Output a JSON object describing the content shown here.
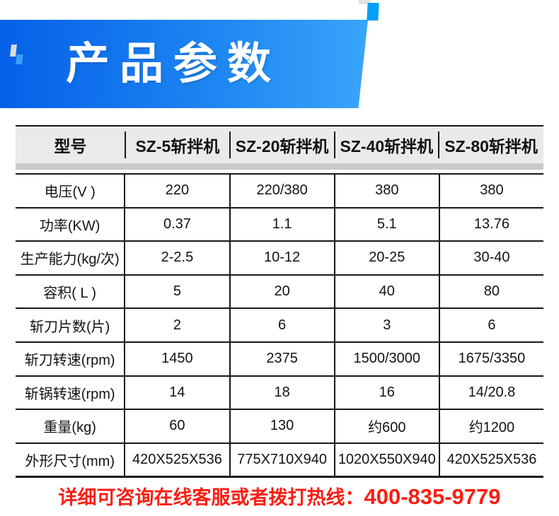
{
  "banner": {
    "title": "产品参数"
  },
  "table": {
    "columns": [
      "型号",
      "SZ-5斩拌机",
      "SZ-20斩拌机",
      "SZ-40斩拌机",
      "SZ-80斩拌机"
    ],
    "rows": [
      {
        "label": "电压(V )",
        "values": [
          "220",
          "220/380",
          "380",
          "380"
        ]
      },
      {
        "label": "功率(KW)",
        "values": [
          "0.37",
          "1.1",
          "5.1",
          "13.76"
        ]
      },
      {
        "label": "生产能力(kg/次)",
        "values": [
          "2-2.5",
          "10-12",
          "20-25",
          "30-40"
        ]
      },
      {
        "label": "容积( L )",
        "values": [
          "5",
          "20",
          "40",
          "80"
        ]
      },
      {
        "label": "斩刀片数(片)",
        "values": [
          "2",
          "6",
          "3",
          "6"
        ]
      },
      {
        "label": "斩刀转速(rpm)",
        "values": [
          "1450",
          "2375",
          "1500/3000",
          "1675/3350"
        ]
      },
      {
        "label": "斩锅转速(rpm)",
        "values": [
          "14",
          "18",
          "16",
          "14/20.8"
        ]
      },
      {
        "label": "重量(kg)",
        "values": [
          "60",
          "130",
          "约600",
          "约1200"
        ]
      },
      {
        "label": "外形尺寸(mm)",
        "values": [
          "420X525X536",
          "775X710X940",
          "1020X550X940",
          "420X525X536"
        ]
      }
    ]
  },
  "footer": {
    "notice": "详细可咨询在线客服或者拨打热线：",
    "phone": "400-835-9779"
  },
  "colors": {
    "banner_gradient_start": "#0560e8",
    "banner_gradient_end": "#38a5fa",
    "accent_square_blue": "#00a0f8",
    "header_bg": "#eaeaea",
    "band_gray": "#c9c9c9",
    "table_line": "#181818",
    "footer_red": "#fb1d12"
  }
}
